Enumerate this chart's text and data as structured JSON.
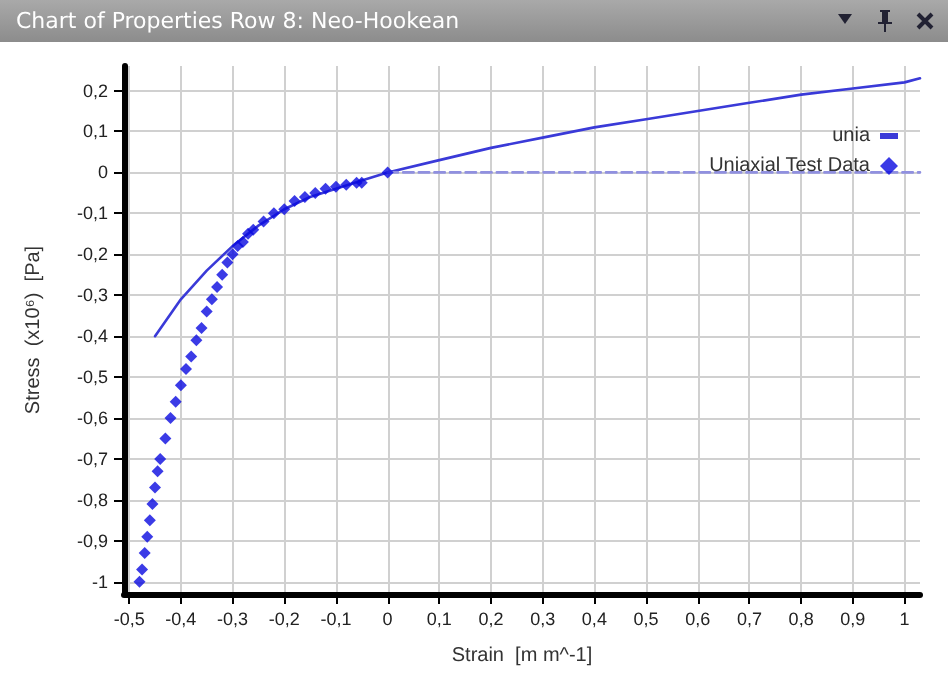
{
  "chart_data": {
    "type": "scatter",
    "title": "Chart of Properties Row 8: Neo-Hookean",
    "xlabel": "Strain  [m m^-1]",
    "ylabel": "Stress  (x10⁶)  [Pa]",
    "xlim": [
      -0.51,
      1.03
    ],
    "ylim": [
      -1.03,
      0.26
    ],
    "xticks": [
      {
        "value": -0.5,
        "label": "-0,5"
      },
      {
        "value": -0.4,
        "label": "-0,4"
      },
      {
        "value": -0.3,
        "label": "-0,3"
      },
      {
        "value": -0.2,
        "label": "-0,2"
      },
      {
        "value": -0.1,
        "label": "-0,1"
      },
      {
        "value": 0,
        "label": "0"
      },
      {
        "value": 0.1,
        "label": "0,1"
      },
      {
        "value": 0.2,
        "label": "0,2"
      },
      {
        "value": 0.3,
        "label": "0,3"
      },
      {
        "value": 0.4,
        "label": "0,4"
      },
      {
        "value": 0.5,
        "label": "0,5"
      },
      {
        "value": 0.6,
        "label": "0,6"
      },
      {
        "value": 0.7,
        "label": "0,7"
      },
      {
        "value": 0.8,
        "label": "0,8"
      },
      {
        "value": 0.9,
        "label": "0,9"
      },
      {
        "value": 1,
        "label": "1"
      }
    ],
    "yticks": [
      {
        "value": -1,
        "label": "-1"
      },
      {
        "value": -0.9,
        "label": "-0,9"
      },
      {
        "value": -0.8,
        "label": "-0,8"
      },
      {
        "value": -0.7,
        "label": "-0,7"
      },
      {
        "value": -0.6,
        "label": "-0,6"
      },
      {
        "value": -0.5,
        "label": "-0,5"
      },
      {
        "value": -0.4,
        "label": "-0,4"
      },
      {
        "value": -0.3,
        "label": "-0,3"
      },
      {
        "value": -0.2,
        "label": "-0,2"
      },
      {
        "value": -0.1,
        "label": "-0,1"
      },
      {
        "value": 0,
        "label": "0"
      },
      {
        "value": 0.1,
        "label": "0,1"
      },
      {
        "value": 0.2,
        "label": "0,2"
      }
    ],
    "grid": true,
    "legend": "top right",
    "series": [
      {
        "name": "unia",
        "type": "line",
        "color": "#3a3ad8",
        "x": [
          -0.45,
          -0.4,
          -0.35,
          -0.3,
          -0.25,
          -0.2,
          -0.15,
          -0.1,
          -0.05,
          0,
          0.1,
          0.2,
          0.3,
          0.4,
          0.5,
          0.6,
          0.7,
          0.8,
          0.9,
          1,
          1.03
        ],
        "values": [
          -0.4,
          -0.31,
          -0.24,
          -0.18,
          -0.13,
          -0.09,
          -0.06,
          -0.04,
          -0.02,
          0,
          0.03,
          0.06,
          0.085,
          0.11,
          0.13,
          0.15,
          0.17,
          0.19,
          0.205,
          0.22,
          0.23
        ]
      },
      {
        "type": "line",
        "color": "#9090e0",
        "line_style": "dashed",
        "x": [
          0,
          1.03
        ],
        "values": [
          0,
          0
        ]
      },
      {
        "name": "Uniaxial Test Data",
        "marker": "diamond",
        "color": "#0a0ae0",
        "x": [
          -0.48,
          -0.475,
          -0.47,
          -0.465,
          -0.46,
          -0.455,
          -0.45,
          -0.445,
          -0.44,
          -0.43,
          -0.42,
          -0.41,
          -0.4,
          -0.39,
          -0.38,
          -0.37,
          -0.36,
          -0.35,
          -0.34,
          -0.33,
          -0.32,
          -0.31,
          -0.3,
          -0.29,
          -0.28,
          -0.27,
          -0.26,
          -0.24,
          -0.22,
          -0.2,
          -0.18,
          -0.16,
          -0.14,
          -0.12,
          -0.1,
          -0.08,
          -0.06,
          -0.05,
          0
        ],
        "values": [
          -1,
          -0.97,
          -0.93,
          -0.89,
          -0.85,
          -0.81,
          -0.77,
          -0.73,
          -0.7,
          -0.65,
          -0.6,
          -0.56,
          -0.52,
          -0.48,
          -0.45,
          -0.41,
          -0.38,
          -0.34,
          -0.31,
          -0.28,
          -0.25,
          -0.22,
          -0.2,
          -0.18,
          -0.17,
          -0.15,
          -0.14,
          -0.12,
          -0.1,
          -0.09,
          -0.07,
          -0.06,
          -0.05,
          -0.04,
          -0.035,
          -0.03,
          -0.025,
          -0.025,
          0
        ]
      }
    ]
  }
}
